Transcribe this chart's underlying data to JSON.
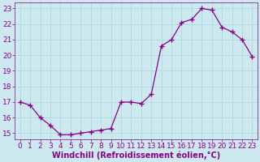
{
  "x": [
    0,
    1,
    2,
    3,
    4,
    5,
    6,
    7,
    8,
    9,
    10,
    11,
    12,
    13,
    14,
    15,
    16,
    17,
    18,
    19,
    20,
    21,
    22,
    23
  ],
  "y": [
    17.0,
    16.8,
    16.0,
    15.5,
    14.9,
    14.9,
    15.0,
    15.1,
    15.2,
    15.3,
    17.0,
    17.0,
    16.9,
    17.5,
    20.6,
    21.0,
    22.1,
    22.3,
    23.0,
    22.9,
    21.8,
    21.5,
    21.0,
    19.9
  ],
  "line_color": "#8B008B",
  "marker": "+",
  "marker_size": 4,
  "bg_color": "#cce9f0",
  "grid_color": "#b0d8e0",
  "xlabel": "Windchill (Refroidissement éolien,°C)",
  "xlabel_color": "#8B008B",
  "tick_color": "#8B008B",
  "ylim": [
    15,
    23
  ],
  "xlim": [
    0,
    23
  ],
  "yticks": [
    15,
    16,
    17,
    18,
    19,
    20,
    21,
    22,
    23
  ],
  "xticks": [
    0,
    1,
    2,
    3,
    4,
    5,
    6,
    7,
    8,
    9,
    10,
    11,
    12,
    13,
    14,
    15,
    16,
    17,
    18,
    19,
    20,
    21,
    22,
    23
  ],
  "font_size": 6.5,
  "xlabel_fontsize": 7
}
